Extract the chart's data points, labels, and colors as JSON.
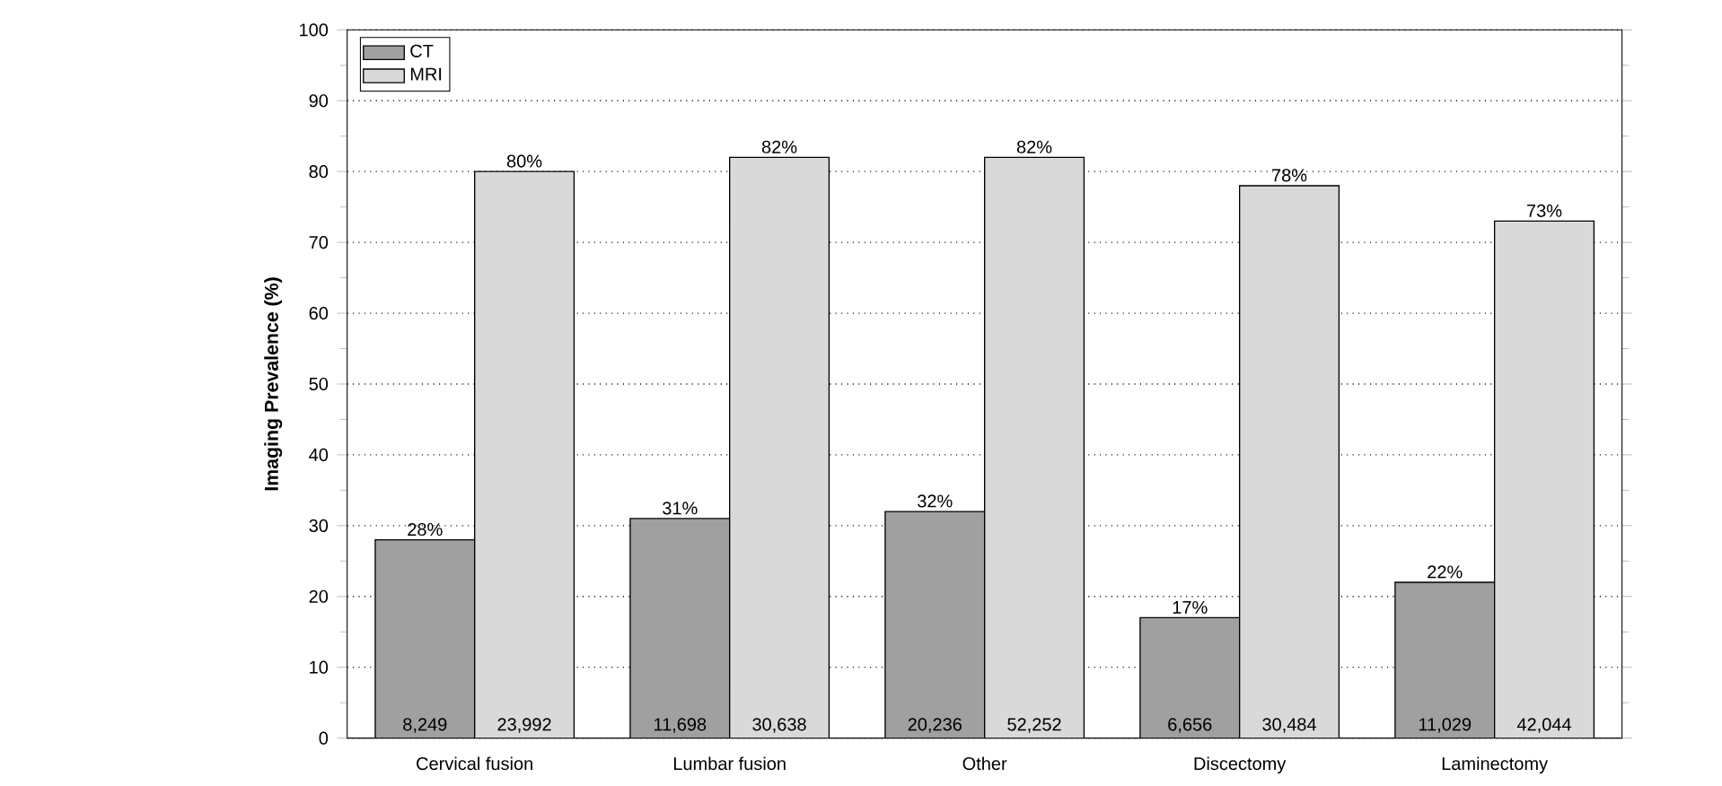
{
  "chart_data": {
    "type": "bar",
    "ylabel": "Imaging Prevalence (%)",
    "categories": [
      "Cervical fusion",
      "Lumbar fusion",
      "Other",
      "Discectomy",
      "Laminectomy"
    ],
    "series": [
      {
        "name": "CT",
        "color": "#a0a0a0",
        "values": [
          28,
          31,
          32,
          17,
          22
        ],
        "value_labels": [
          "28%",
          "31%",
          "32%",
          "17%",
          "22%"
        ]
      },
      {
        "name": "MRI",
        "color": "#d9d9d9",
        "values": [
          80,
          82,
          82,
          78,
          73
        ],
        "value_labels": [
          "80%",
          "82%",
          "82%",
          "78%",
          "73%"
        ]
      }
    ],
    "annotations": [
      {
        "text": "8,249",
        "x": "Cervical fusion",
        "y": 0
      },
      {
        "text": "23,992",
        "x": "Cervical fusion",
        "y": 0
      },
      {
        "text": "11,698",
        "x": "Lumbar fusion",
        "y": 0
      },
      {
        "text": "30,638",
        "x": "Lumbar fusion",
        "y": 0
      },
      {
        "text": "20,236",
        "x": "Other",
        "y": 0
      },
      {
        "text": "52,252",
        "x": "Other",
        "y": 0
      },
      {
        "text": "6,656",
        "x": "Discectomy",
        "y": 0
      },
      {
        "text": "30,484",
        "x": "Discectomy",
        "y": 0
      },
      {
        "text": "11,029",
        "x": "Laminectomy",
        "y": 0
      },
      {
        "text": "42,044",
        "x": "Laminectomy",
        "y": 0
      }
    ],
    "ylim": [
      0,
      100
    ],
    "yticks": [
      0,
      10,
      20,
      30,
      40,
      50,
      60,
      70,
      80,
      90,
      100
    ],
    "grid": "y",
    "legend": "top left"
  }
}
